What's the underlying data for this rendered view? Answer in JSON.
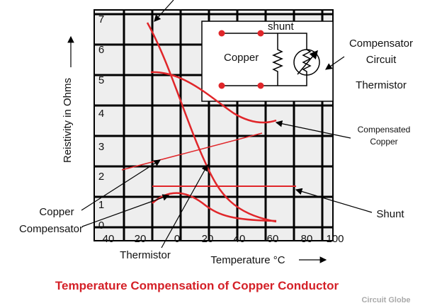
{
  "y_axis": {
    "label": "Reistivity in Ohms",
    "ticks": [
      "7",
      "6",
      "5",
      "4",
      "3",
      "2",
      "1",
      "0"
    ]
  },
  "x_axis": {
    "label": "Temperature °C",
    "ticks": [
      "40",
      "20",
      "0",
      "20",
      "40",
      "60",
      "80",
      "100"
    ]
  },
  "inset": {
    "shunt": "shunt",
    "copper": "Copper"
  },
  "annotations": {
    "compensator_circuit": [
      "Compensator",
      "Circuit"
    ],
    "thermistor_right": "Thermistor",
    "compensated_copper": [
      "Compensated",
      "Copper"
    ],
    "shunt": "Shunt",
    "copper_compensator": [
      "Copper",
      "Compensator"
    ],
    "thermistor_bottom": "Thermistor"
  },
  "title": "Temperature Compensation of Copper Conductor",
  "watermark": "Circuit Globe"
}
